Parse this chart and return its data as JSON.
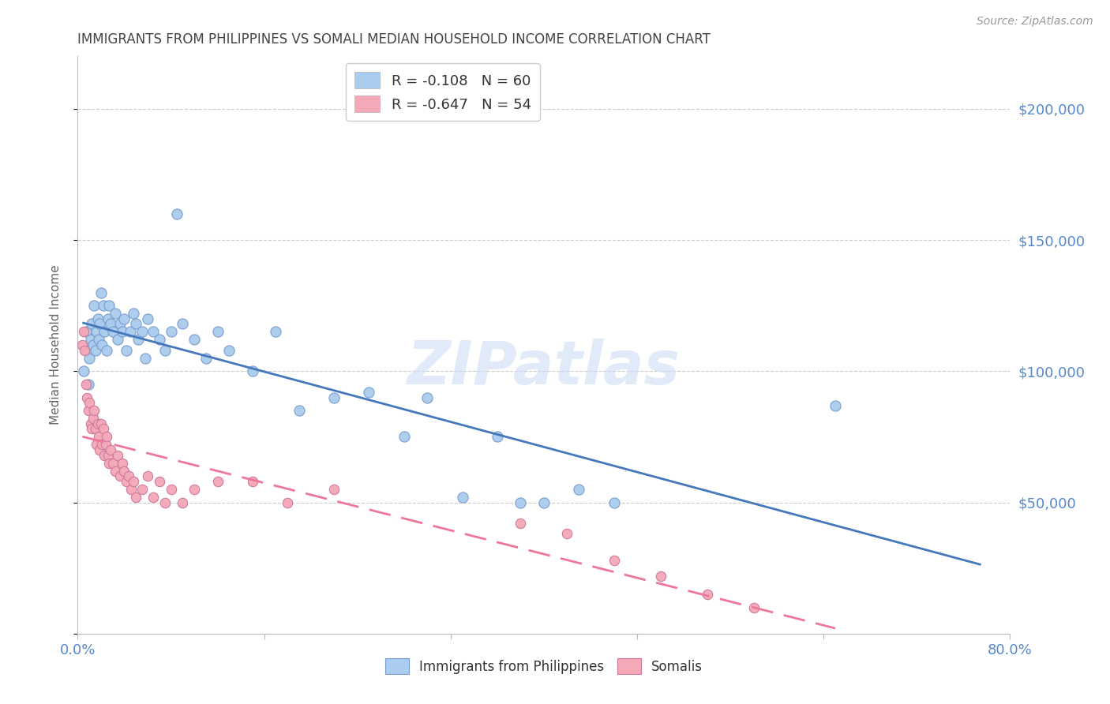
{
  "title": "IMMIGRANTS FROM PHILIPPINES VS SOMALI MEDIAN HOUSEHOLD INCOME CORRELATION CHART",
  "source": "Source: ZipAtlas.com",
  "ylabel": "Median Household Income",
  "yticks": [
    0,
    50000,
    100000,
    150000,
    200000
  ],
  "ytick_labels": [
    "",
    "$50,000",
    "$100,000",
    "$150,000",
    "$200,000"
  ],
  "xlim": [
    0.0,
    0.8
  ],
  "ylim": [
    0,
    220000
  ],
  "watermark": "ZIPatlas",
  "legend_top": [
    {
      "label": "R = -0.108   N = 60",
      "color": "#aaccee"
    },
    {
      "label": "R = -0.647   N = 54",
      "color": "#f4a8b8"
    }
  ],
  "philippines_color": "#aaccee",
  "philippines_edge": "#7799cc",
  "somali_color": "#f4a8b8",
  "somali_edge": "#cc7799",
  "philippines_line_color": "#4477bb",
  "somali_line_color": "#ee7799",
  "background_color": "#ffffff",
  "grid_color": "#cccccc",
  "axis_color": "#bbbbbb",
  "title_color": "#444444",
  "tick_label_color": "#5588cc",
  "philippines_x": [
    0.005,
    0.007,
    0.008,
    0.009,
    0.01,
    0.011,
    0.012,
    0.013,
    0.014,
    0.015,
    0.016,
    0.017,
    0.018,
    0.019,
    0.02,
    0.021,
    0.022,
    0.023,
    0.025,
    0.026,
    0.027,
    0.028,
    0.03,
    0.032,
    0.034,
    0.036,
    0.038,
    0.04,
    0.042,
    0.045,
    0.048,
    0.05,
    0.052,
    0.055,
    0.058,
    0.06,
    0.065,
    0.07,
    0.075,
    0.08,
    0.085,
    0.09,
    0.1,
    0.11,
    0.12,
    0.13,
    0.15,
    0.17,
    0.19,
    0.22,
    0.25,
    0.28,
    0.3,
    0.33,
    0.36,
    0.38,
    0.4,
    0.43,
    0.46,
    0.65
  ],
  "philippines_y": [
    100000,
    115000,
    108000,
    95000,
    105000,
    112000,
    118000,
    110000,
    125000,
    108000,
    115000,
    120000,
    112000,
    118000,
    130000,
    110000,
    125000,
    115000,
    108000,
    120000,
    125000,
    118000,
    115000,
    122000,
    112000,
    118000,
    115000,
    120000,
    108000,
    115000,
    122000,
    118000,
    112000,
    115000,
    105000,
    120000,
    115000,
    112000,
    108000,
    115000,
    160000,
    118000,
    112000,
    105000,
    115000,
    108000,
    100000,
    115000,
    85000,
    90000,
    92000,
    75000,
    90000,
    52000,
    75000,
    50000,
    50000,
    55000,
    50000,
    87000
  ],
  "somali_x": [
    0.004,
    0.005,
    0.006,
    0.007,
    0.008,
    0.009,
    0.01,
    0.011,
    0.012,
    0.013,
    0.014,
    0.015,
    0.016,
    0.017,
    0.018,
    0.019,
    0.02,
    0.021,
    0.022,
    0.023,
    0.024,
    0.025,
    0.026,
    0.027,
    0.028,
    0.03,
    0.032,
    0.034,
    0.036,
    0.038,
    0.04,
    0.042,
    0.044,
    0.046,
    0.048,
    0.05,
    0.055,
    0.06,
    0.065,
    0.07,
    0.075,
    0.08,
    0.09,
    0.1,
    0.12,
    0.15,
    0.18,
    0.22,
    0.38,
    0.42,
    0.46,
    0.5,
    0.54,
    0.58
  ],
  "somali_y": [
    110000,
    115000,
    108000,
    95000,
    90000,
    85000,
    88000,
    80000,
    78000,
    82000,
    85000,
    78000,
    72000,
    80000,
    75000,
    70000,
    80000,
    72000,
    78000,
    68000,
    72000,
    75000,
    68000,
    65000,
    70000,
    65000,
    62000,
    68000,
    60000,
    65000,
    62000,
    58000,
    60000,
    55000,
    58000,
    52000,
    55000,
    60000,
    52000,
    58000,
    50000,
    55000,
    50000,
    55000,
    58000,
    58000,
    50000,
    55000,
    42000,
    38000,
    28000,
    22000,
    15000,
    10000
  ]
}
